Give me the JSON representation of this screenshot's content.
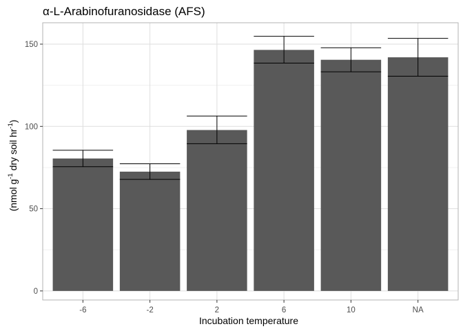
{
  "chart_data": {
    "type": "bar",
    "title": "α-L-Arabinofuranosidase (AFS)",
    "xlabel": "Incubation temperature",
    "ylabel": {
      "prefix": "(nmol g",
      "sup1": "-1",
      "middle": " dry soil hr",
      "sup2": "-1",
      "suffix": ")"
    },
    "categories": [
      "-6",
      "-2",
      "2",
      "6",
      "10",
      "NA"
    ],
    "values": [
      80.5,
      72.5,
      97.8,
      146.5,
      140.5,
      142.0
    ],
    "error_low": [
      75.5,
      67.8,
      89.5,
      138.5,
      133.2,
      130.5
    ],
    "error_high": [
      85.5,
      77.3,
      106.3,
      154.8,
      147.8,
      153.5
    ],
    "ylim": [
      -5.5,
      163
    ],
    "yticks": [
      0,
      50,
      100,
      150
    ],
    "ytick_labels": [
      "0",
      "50",
      "100",
      "150"
    ],
    "grid": true,
    "colors": {
      "bar": "#595959",
      "error_bar": "#000000",
      "grid_major": "#dedede",
      "grid_minor": "#f0f0f0",
      "panel_border": "#b3b3b3",
      "tick_label": "#4d4d4d"
    }
  }
}
